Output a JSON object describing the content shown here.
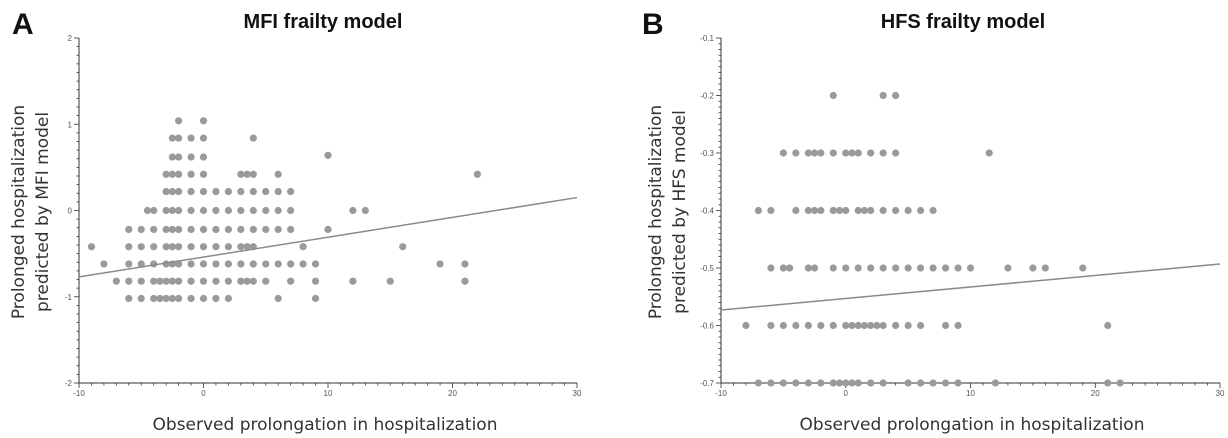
{
  "chart_data": [
    {
      "panel_label": "A",
      "type": "scatter",
      "title": "MFI frailty model",
      "xlabel": "Observed prolongation in hospitalization",
      "ylabel": [
        "Prolonged hospitalization",
        "predicted by MFI model"
      ],
      "xlim": [
        -10,
        30
      ],
      "ylim": [
        -2,
        2
      ],
      "x_ticks": [
        -10,
        0,
        10,
        20,
        30
      ],
      "y_ticks": [
        -2,
        -1,
        0,
        1,
        2
      ],
      "minor_x_step": 1,
      "minor_y_step": 0.1,
      "grid": false,
      "fit_line": [
        [
          -10,
          -0.77
        ],
        [
          30,
          0.15
        ]
      ],
      "points": [
        [
          -9,
          -0.42
        ],
        [
          -8,
          -0.62
        ],
        [
          -7,
          -0.82
        ],
        [
          -6,
          -0.22
        ],
        [
          -6,
          -0.42
        ],
        [
          -6,
          -0.62
        ],
        [
          -6,
          -0.82
        ],
        [
          -6,
          -1.02
        ],
        [
          -5,
          -0.22
        ],
        [
          -5,
          -0.42
        ],
        [
          -5,
          -0.62
        ],
        [
          -5,
          -0.82
        ],
        [
          -5,
          -1.02
        ],
        [
          -4.5,
          0
        ],
        [
          -4,
          0
        ],
        [
          -4,
          -0.22
        ],
        [
          -4,
          -0.42
        ],
        [
          -4,
          -0.62
        ],
        [
          -4,
          -0.82
        ],
        [
          -4,
          -1.02
        ],
        [
          -3.5,
          -0.82
        ],
        [
          -3.5,
          -1.02
        ],
        [
          -3,
          0.42
        ],
        [
          -3,
          0.22
        ],
        [
          -3,
          0
        ],
        [
          -3,
          -0.22
        ],
        [
          -3,
          -0.42
        ],
        [
          -3,
          -0.62
        ],
        [
          -3,
          -0.82
        ],
        [
          -3,
          -1.02
        ],
        [
          -2.5,
          0.84
        ],
        [
          -2.5,
          0.62
        ],
        [
          -2.5,
          0.42
        ],
        [
          -2.5,
          0.22
        ],
        [
          -2.5,
          0
        ],
        [
          -2.5,
          -0.22
        ],
        [
          -2.5,
          -0.42
        ],
        [
          -2.5,
          -0.62
        ],
        [
          -2.5,
          -0.82
        ],
        [
          -2.5,
          -1.02
        ],
        [
          -2,
          1.04
        ],
        [
          -2,
          0.84
        ],
        [
          -2,
          0.62
        ],
        [
          -2,
          0.42
        ],
        [
          -2,
          0.22
        ],
        [
          -2,
          0
        ],
        [
          -2,
          -0.22
        ],
        [
          -2,
          -0.42
        ],
        [
          -2,
          -0.62
        ],
        [
          -2,
          -0.82
        ],
        [
          -2,
          -1.02
        ],
        [
          -1,
          0.84
        ],
        [
          -1,
          0.62
        ],
        [
          -1,
          0.42
        ],
        [
          -1,
          0.22
        ],
        [
          -1,
          0
        ],
        [
          -1,
          -0.22
        ],
        [
          -1,
          -0.42
        ],
        [
          -1,
          -0.62
        ],
        [
          -1,
          -0.82
        ],
        [
          -1,
          -1.02
        ],
        [
          0,
          1.04
        ],
        [
          0,
          0.84
        ],
        [
          0,
          0.62
        ],
        [
          0,
          0.42
        ],
        [
          0,
          0.22
        ],
        [
          0,
          0
        ],
        [
          0,
          -0.22
        ],
        [
          0,
          -0.42
        ],
        [
          0,
          -0.62
        ],
        [
          0,
          -0.82
        ],
        [
          0,
          -1.02
        ],
        [
          1,
          0.22
        ],
        [
          1,
          0
        ],
        [
          1,
          -0.22
        ],
        [
          1,
          -0.42
        ],
        [
          1,
          -0.62
        ],
        [
          1,
          -0.82
        ],
        [
          1,
          -1.02
        ],
        [
          2,
          0.22
        ],
        [
          2,
          0
        ],
        [
          2,
          -0.22
        ],
        [
          2,
          -0.42
        ],
        [
          2,
          -0.62
        ],
        [
          2,
          -0.82
        ],
        [
          2,
          -1.02
        ],
        [
          3,
          0.42
        ],
        [
          3,
          0.22
        ],
        [
          3,
          0
        ],
        [
          3,
          -0.22
        ],
        [
          3,
          -0.42
        ],
        [
          3,
          -0.62
        ],
        [
          3,
          -0.82
        ],
        [
          3.5,
          0.42
        ],
        [
          3.5,
          -0.42
        ],
        [
          3.5,
          -0.82
        ],
        [
          4,
          0.84
        ],
        [
          4,
          0.42
        ],
        [
          4,
          0.22
        ],
        [
          4,
          0
        ],
        [
          4,
          -0.22
        ],
        [
          4,
          -0.42
        ],
        [
          4,
          -0.62
        ],
        [
          4,
          -0.82
        ],
        [
          5,
          0.22
        ],
        [
          5,
          0
        ],
        [
          5,
          -0.22
        ],
        [
          5,
          -0.62
        ],
        [
          5,
          -0.82
        ],
        [
          6,
          0.42
        ],
        [
          6,
          0.22
        ],
        [
          6,
          0
        ],
        [
          6,
          -0.22
        ],
        [
          6,
          -0.62
        ],
        [
          6,
          -1.02
        ],
        [
          7,
          0.22
        ],
        [
          7,
          0
        ],
        [
          7,
          -0.22
        ],
        [
          7,
          -0.62
        ],
        [
          7,
          -0.82
        ],
        [
          8,
          -0.42
        ],
        [
          8,
          -0.62
        ],
        [
          9,
          -0.62
        ],
        [
          9,
          -0.82
        ],
        [
          9,
          -1.02
        ],
        [
          10,
          0.64
        ],
        [
          10,
          -0.22
        ],
        [
          12,
          0
        ],
        [
          12,
          -0.82
        ],
        [
          13,
          0
        ],
        [
          15,
          -0.82
        ],
        [
          16,
          -0.42
        ],
        [
          19,
          -0.62
        ],
        [
          21,
          -0.62
        ],
        [
          21,
          -0.82
        ],
        [
          22,
          0.42
        ]
      ]
    },
    {
      "panel_label": "B",
      "type": "scatter",
      "title": "HFS frailty model",
      "xlabel": "Observed prolongation in hospitalization",
      "ylabel": [
        "Prolonged hospitalization",
        "predicted by HFS model"
      ],
      "xlim": [
        -10,
        30
      ],
      "ylim": [
        -0.7,
        -0.1
      ],
      "x_ticks": [
        -10,
        0,
        10,
        20,
        30
      ],
      "y_ticks": [
        -0.7,
        -0.6,
        -0.5,
        -0.4,
        -0.3,
        -0.2,
        -0.1
      ],
      "minor_x_step": 1,
      "minor_y_step": 0.01,
      "grid": false,
      "fit_line": [
        [
          -10,
          -0.573
        ],
        [
          30,
          -0.493
        ]
      ],
      "points": [
        [
          -8,
          -0.6
        ],
        [
          -7,
          -0.7
        ],
        [
          -6,
          -0.7
        ],
        [
          -6,
          -0.6
        ],
        [
          -5,
          -0.7
        ],
        [
          -4,
          -0.7
        ],
        [
          -3,
          -0.7
        ],
        [
          -2,
          -0.7
        ],
        [
          -1,
          -0.7
        ],
        [
          -0.5,
          -0.7
        ],
        [
          0,
          -0.7
        ],
        [
          0.5,
          -0.7
        ],
        [
          1,
          -0.7
        ],
        [
          2,
          -0.7
        ],
        [
          3,
          -0.7
        ],
        [
          5,
          -0.7
        ],
        [
          6,
          -0.7
        ],
        [
          7,
          -0.7
        ],
        [
          8,
          -0.7
        ],
        [
          9,
          -0.7
        ],
        [
          12,
          -0.7
        ],
        [
          21,
          -0.7
        ],
        [
          22,
          -0.7
        ],
        [
          -5,
          -0.6
        ],
        [
          -4,
          -0.6
        ],
        [
          -3,
          -0.6
        ],
        [
          -2,
          -0.6
        ],
        [
          -1,
          -0.6
        ],
        [
          0,
          -0.6
        ],
        [
          0.5,
          -0.6
        ],
        [
          1,
          -0.6
        ],
        [
          1.5,
          -0.6
        ],
        [
          2,
          -0.6
        ],
        [
          2.5,
          -0.6
        ],
        [
          3,
          -0.6
        ],
        [
          4,
          -0.6
        ],
        [
          5,
          -0.6
        ],
        [
          6,
          -0.6
        ],
        [
          8,
          -0.6
        ],
        [
          9,
          -0.6
        ],
        [
          21,
          -0.6
        ],
        [
          -6,
          -0.5
        ],
        [
          -5,
          -0.5
        ],
        [
          -4.5,
          -0.5
        ],
        [
          -3,
          -0.5
        ],
        [
          -2.5,
          -0.5
        ],
        [
          -1,
          -0.5
        ],
        [
          0,
          -0.5
        ],
        [
          1,
          -0.5
        ],
        [
          2,
          -0.5
        ],
        [
          3,
          -0.5
        ],
        [
          4,
          -0.5
        ],
        [
          5,
          -0.5
        ],
        [
          6,
          -0.5
        ],
        [
          7,
          -0.5
        ],
        [
          8,
          -0.5
        ],
        [
          9,
          -0.5
        ],
        [
          10,
          -0.5
        ],
        [
          13,
          -0.5
        ],
        [
          15,
          -0.5
        ],
        [
          16,
          -0.5
        ],
        [
          19,
          -0.5
        ],
        [
          -7,
          -0.4
        ],
        [
          -6,
          -0.4
        ],
        [
          -4,
          -0.4
        ],
        [
          -3,
          -0.4
        ],
        [
          -2.5,
          -0.4
        ],
        [
          -2,
          -0.4
        ],
        [
          -1,
          -0.4
        ],
        [
          -0.5,
          -0.4
        ],
        [
          0,
          -0.4
        ],
        [
          1,
          -0.4
        ],
        [
          1.5,
          -0.4
        ],
        [
          2,
          -0.4
        ],
        [
          3,
          -0.4
        ],
        [
          4,
          -0.4
        ],
        [
          5,
          -0.4
        ],
        [
          6,
          -0.4
        ],
        [
          7,
          -0.4
        ],
        [
          -5,
          -0.3
        ],
        [
          -4,
          -0.3
        ],
        [
          -3,
          -0.3
        ],
        [
          -2.5,
          -0.3
        ],
        [
          -2,
          -0.3
        ],
        [
          -1,
          -0.3
        ],
        [
          0,
          -0.3
        ],
        [
          0.5,
          -0.3
        ],
        [
          1,
          -0.3
        ],
        [
          2,
          -0.3
        ],
        [
          3,
          -0.3
        ],
        [
          4,
          -0.3
        ],
        [
          11.5,
          -0.3
        ],
        [
          -1,
          -0.2
        ],
        [
          3,
          -0.2
        ],
        [
          4,
          -0.2
        ]
      ]
    }
  ]
}
